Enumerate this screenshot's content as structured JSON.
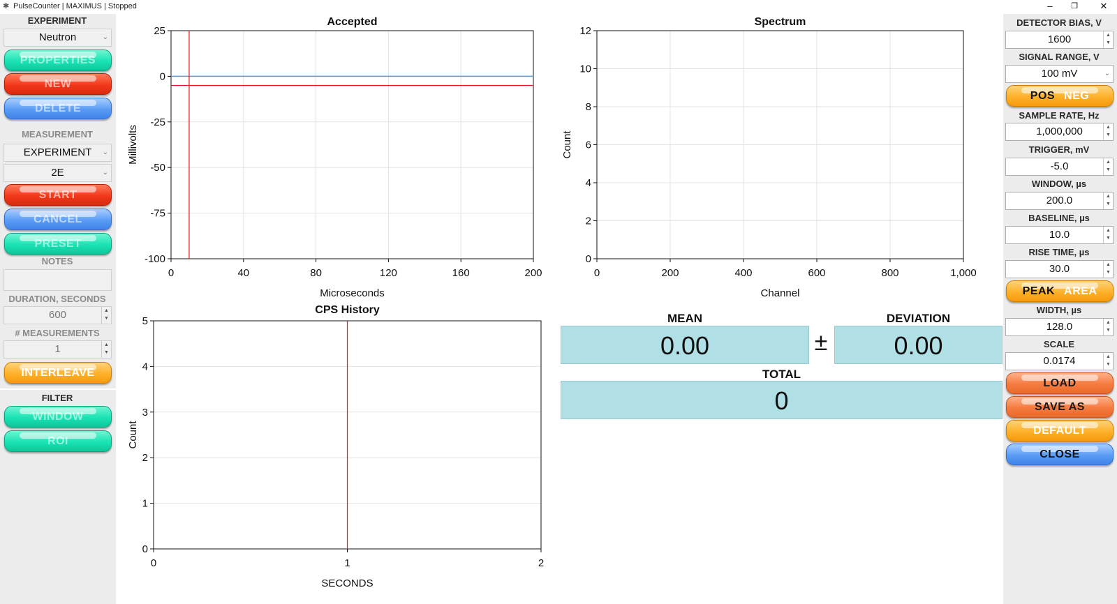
{
  "window": {
    "title": "PulseCounter | MAXIMUS | Stopped",
    "app_icon": "gear-icon",
    "controls": {
      "minimize": "–",
      "restore": "❐",
      "close": "✕"
    }
  },
  "left": {
    "experiment_label": "EXPERIMENT",
    "experiment_value": "Neutron",
    "properties": "PROPERTIES",
    "new": "NEW",
    "delete": "DELETE",
    "measurement_label": "MEASUREMENT",
    "measurement_value": "EXPERIMENT",
    "measurement_sub_value": "2E",
    "start": "START",
    "cancel": "CANCEL",
    "preset": "PRESET",
    "notes_label": "NOTES",
    "notes_value": "",
    "duration_label": "DURATION, SECONDS",
    "duration_value": "600",
    "measurements_label": "# MEASUREMENTS",
    "measurements_value": "1",
    "interleave": "INTERLEAVE",
    "filter_label": "FILTER",
    "window_btn": "WINDOW",
    "roi_btn": "ROI"
  },
  "right": {
    "detector_bias_label": "DETECTOR BIAS, V",
    "detector_bias_value": "1600",
    "signal_range_label": "SIGNAL RANGE, V",
    "signal_range_value": "100 mV",
    "pos": "POS",
    "neg": "NEG",
    "sample_rate_label": "SAMPLE RATE, Hz",
    "sample_rate_value": "1,000,000",
    "trigger_label": "TRIGGER, mV",
    "trigger_value": "-5.0",
    "window_label": "WINDOW, µs",
    "window_value": "200.0",
    "baseline_label": "BASELINE, µs",
    "baseline_value": "10.0",
    "rise_time_label": "RISE TIME, µs",
    "rise_time_value": "30.0",
    "peak": "PEAK",
    "area": "AREA",
    "width_label": "WIDTH, µs",
    "width_value": "128.0",
    "scale_label": "SCALE",
    "scale_value": "0.0174",
    "load": "LOAD",
    "save_as": "SAVE AS",
    "default": "DEFAULT",
    "close": "CLOSE"
  },
  "readouts": {
    "mean_label": "MEAN",
    "mean_value": "0.00",
    "pm": "±",
    "deviation_label": "DEVIATION",
    "deviation_value": "0.00",
    "total_label": "TOTAL",
    "total_value": "0"
  },
  "colors": {
    "trace_blue": "#5b9bd5",
    "marker_red": "#e8141e",
    "readout_bg": "#b0dfe5",
    "grid": "#e3e3e3"
  },
  "chart_data": [
    {
      "id": "accepted",
      "type": "line",
      "title": "Accepted",
      "xlabel": "Microseconds",
      "ylabel": "Millivolts",
      "xlim": [
        0,
        200
      ],
      "ylim": [
        -100,
        25
      ],
      "xticks": [
        0,
        40,
        80,
        120,
        160,
        200
      ],
      "yticks": [
        25,
        0,
        -25,
        -50,
        -75,
        -100
      ],
      "xtick_labels": [
        "0",
        "40",
        "80",
        "120",
        "160",
        "200"
      ],
      "ytick_labels": [
        "25",
        "0",
        "-25",
        "-50",
        "-75",
        "-100"
      ],
      "grid": true,
      "series": [
        {
          "x": [
            0,
            200
          ],
          "y": [
            0,
            0
          ],
          "color": "#5b9bd5"
        }
      ],
      "hlines": [
        {
          "y": -5,
          "color": "#e8141e"
        }
      ],
      "vlines": [
        {
          "x": 10,
          "color": "#e8141e"
        }
      ]
    },
    {
      "id": "spectrum",
      "type": "line",
      "title": "Spectrum",
      "xlabel": "Channel",
      "ylabel": "Count",
      "xlim": [
        0,
        1000
      ],
      "ylim": [
        0,
        12
      ],
      "xticks": [
        0,
        200,
        400,
        600,
        800,
        1000
      ],
      "yticks": [
        12,
        10,
        8,
        6,
        4,
        2,
        0
      ],
      "xtick_labels": [
        "0",
        "200",
        "400",
        "600",
        "800",
        "1,000"
      ],
      "ytick_labels": [
        "12",
        "10",
        "8",
        "6",
        "4",
        "2",
        "0"
      ],
      "grid": true,
      "series": [],
      "hlines": [],
      "vlines": []
    },
    {
      "id": "cps",
      "type": "line",
      "title": "CPS History",
      "xlabel": "SECONDS",
      "ylabel": "Count",
      "xlim": [
        0,
        2
      ],
      "ylim": [
        0,
        5
      ],
      "xticks": [
        0,
        1,
        2
      ],
      "yticks": [
        5,
        4,
        3,
        2,
        1,
        0
      ],
      "xtick_labels": [
        "0",
        "1",
        "2"
      ],
      "ytick_labels": [
        "5",
        "4",
        "3",
        "2",
        "1",
        "0"
      ],
      "grid": true,
      "series": [],
      "hlines": [],
      "vlines": [
        {
          "x": 1,
          "color": "#e8141e"
        }
      ]
    }
  ]
}
